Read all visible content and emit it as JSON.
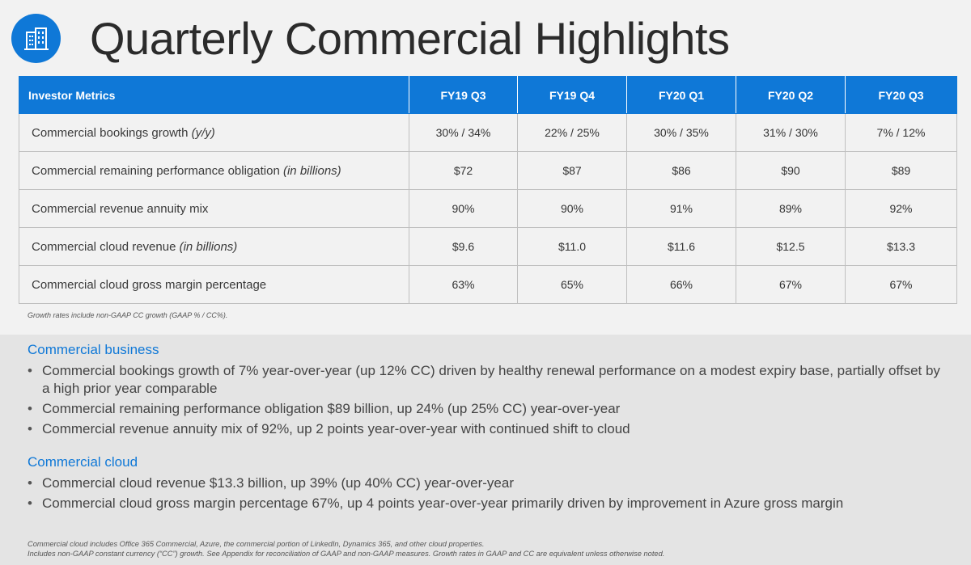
{
  "title": "Quarterly Commercial Highlights",
  "table": {
    "header_label": "Investor Metrics",
    "columns": [
      "FY19 Q3",
      "FY19 Q4",
      "FY20 Q1",
      "FY20 Q2",
      "FY20 Q3"
    ],
    "rows": [
      {
        "label": "Commercial bookings growth",
        "label_note": "(y/y)",
        "values": [
          "30% / 34%",
          "22% / 25%",
          "30% / 35%",
          "31% / 30%",
          "7% / 12%"
        ]
      },
      {
        "label": "Commercial remaining performance obligation",
        "label_note": "(in billions)",
        "values": [
          "$72",
          "$87",
          "$86",
          "$90",
          "$89"
        ]
      },
      {
        "label": "Commercial revenue annuity mix",
        "label_note": "",
        "values": [
          "90%",
          "90%",
          "91%",
          "89%",
          "92%"
        ]
      },
      {
        "label": "Commercial cloud revenue",
        "label_note": "(in billions)",
        "values": [
          "$9.6",
          "$11.0",
          "$11.6",
          "$12.5",
          "$13.3"
        ]
      },
      {
        "label": "Commercial cloud gross margin percentage",
        "label_note": "",
        "values": [
          "63%",
          "65%",
          "66%",
          "67%",
          "67%"
        ]
      }
    ],
    "footnote": "Growth rates include non-GAAP CC growth (GAAP % / CC%)."
  },
  "sections": {
    "business": {
      "heading": "Commercial business",
      "bullets": [
        "Commercial bookings growth of 7% year-over-year (up 12% CC) driven by healthy renewal performance on a modest expiry base, partially offset by a high prior year comparable",
        "Commercial remaining performance obligation $89 billion, up 24% (up 25% CC) year-over-year",
        "Commercial revenue annuity mix of 92%, up 2 points year-over-year with continued shift to cloud"
      ]
    },
    "cloud": {
      "heading": "Commercial cloud",
      "bullets": [
        "Commercial cloud revenue $13.3 billion, up 39% (up 40% CC) year-over-year",
        "Commercial cloud gross margin percentage 67%, up 4 points year-over-year primarily driven by improvement in Azure gross margin"
      ]
    }
  },
  "footer": {
    "line1": "Commercial cloud includes Office 365 Commercial, Azure, the commercial portion of LinkedIn, Dynamics 365, and other cloud properties.",
    "line2": "Includes non-GAAP constant currency (“CC”) growth. See Appendix for reconciliation of GAAP and non-GAAP measures. Growth rates in GAAP and CC are equivalent unless otherwise noted."
  },
  "colors": {
    "accent": "#0f78d7"
  },
  "icons": {
    "logo": "building-icon"
  }
}
